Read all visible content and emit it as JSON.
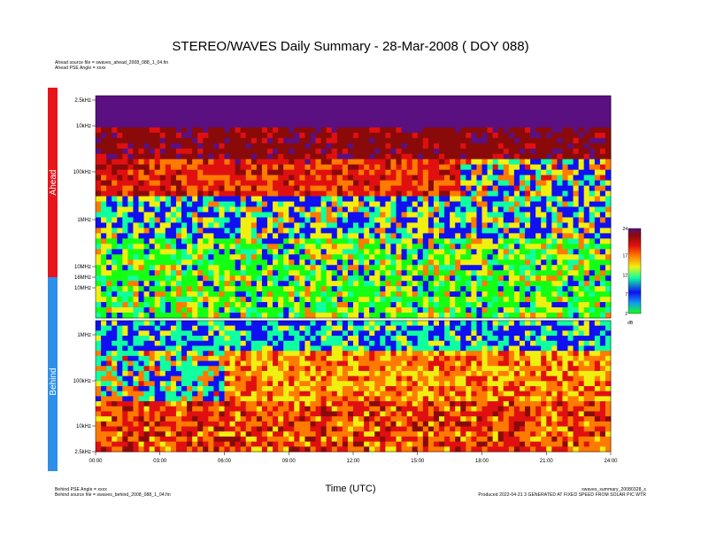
{
  "header": {
    "title": "STEREO/WAVES Daily Summary - 28-Mar-2008 ( DOY 088)",
    "ahead_source": "Ahead source file = swaves_ahead_2008_088_1_04.fin",
    "ahead_angle": "Ahead PSE Angle = xxxx"
  },
  "footer": {
    "behind_angle": "Behind PSE Angle = xxxx",
    "behind_source": "Behind source file = swaves_behind_2008_088_1_04.fin",
    "summary_file": "swaves_summary_20080328_s",
    "produced": "Produced 2022-04-21 3 GENERATED AT FIXED SPEED FROM SOLAR PIC WTR"
  },
  "colors": {
    "ahead": "#e8151c",
    "behind": "#2e8fe8",
    "colormap": [
      "#14ff14",
      "#1010f0",
      "#10ffa0",
      "#f0f010",
      "#ff7a00",
      "#e01010",
      "#8a0a0a",
      "#5a1080"
    ]
  },
  "chart_data": {
    "type": "heatmap",
    "title": "STEREO/WAVES Daily Summary - 28-Mar-2008 ( DOY 088)",
    "xlabel": "Time (UTC)",
    "x_ticks": [
      "00:00",
      "03:00",
      "06:00",
      "09:00",
      "12:00",
      "15:00",
      "18:00",
      "21:00",
      "24:00"
    ],
    "xlim": [
      "00:00",
      "24:00"
    ],
    "panels": [
      {
        "name": "Ahead",
        "y_ticks": [
          "2.5kHz",
          "10kHz",
          "100kHz",
          "1MHz",
          "10MHz",
          "16MHz"
        ],
        "scale": "log",
        "ylim_hz": [
          16000000,
          2500
        ]
      },
      {
        "name": "Behind",
        "y_ticks": [
          "10MHz",
          "1MHz",
          "100kHz",
          "10kHz",
          "2.5kHz"
        ],
        "scale": "log",
        "ylim_hz": [
          16000000,
          2500
        ]
      }
    ],
    "colorbar": {
      "ticks": [
        "24",
        "17",
        "12",
        "7",
        "2"
      ],
      "unit": "dB",
      "range": [
        2,
        24
      ]
    }
  }
}
